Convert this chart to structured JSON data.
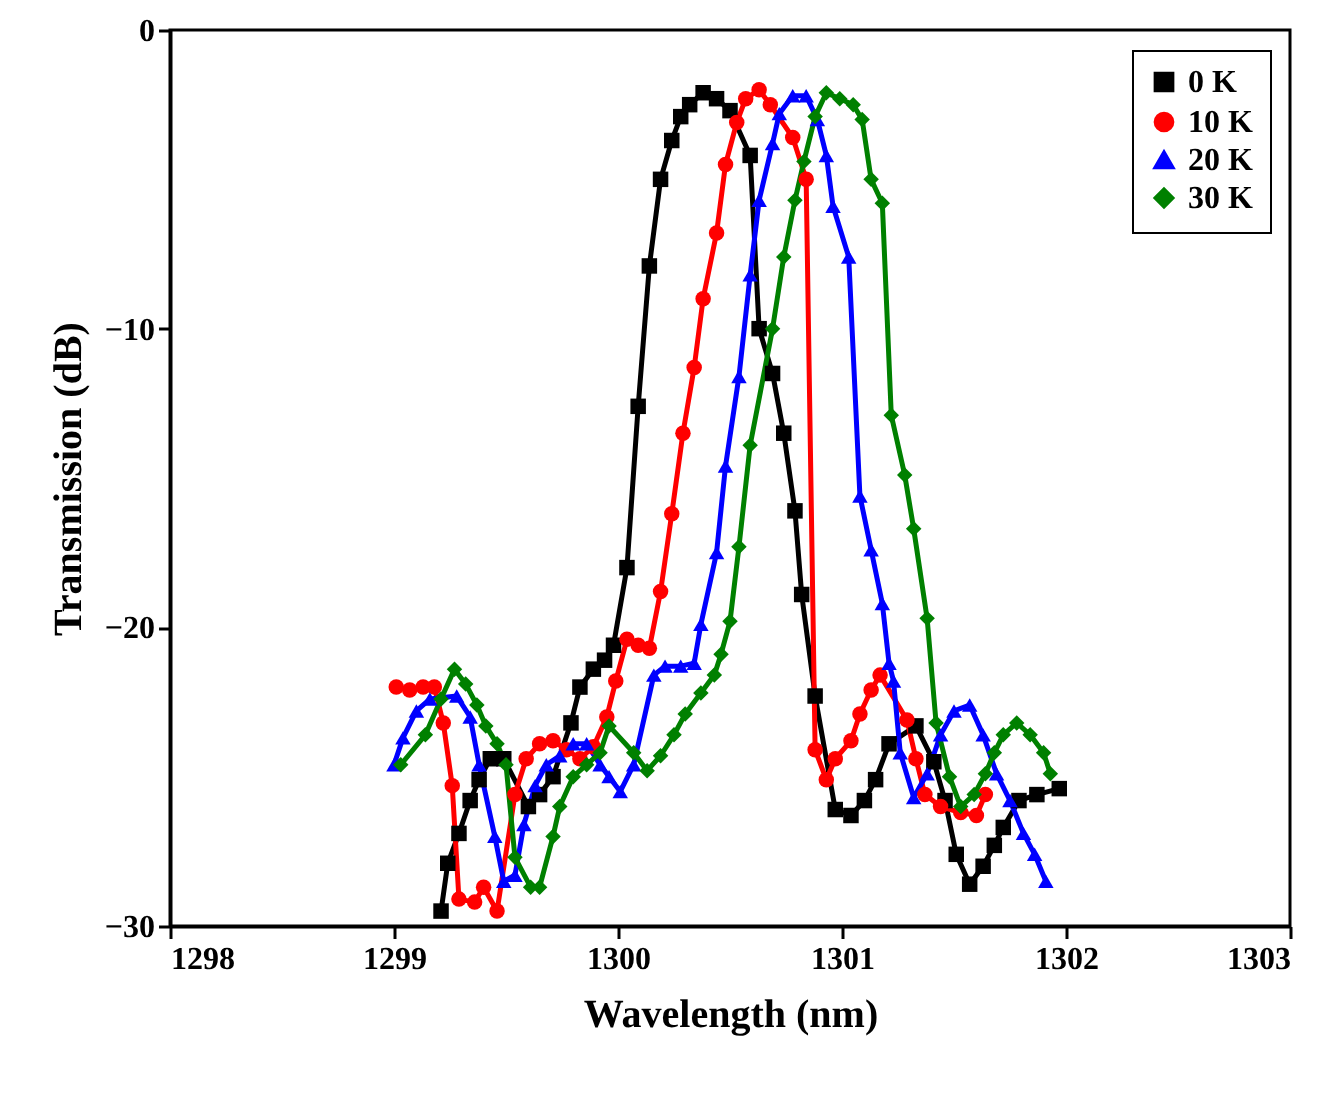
{
  "chart_data": {
    "type": "line",
    "xlabel": "Wavelength (nm)",
    "ylabel": "Transmission (dB)",
    "xlim": [
      1298,
      1303
    ],
    "xticks": [
      1298,
      1299,
      1300,
      1301,
      1302,
      1303
    ],
    "ylim": [
      -30,
      0
    ],
    "yticks": [
      -30,
      -20,
      -10,
      0
    ],
    "grid": false,
    "legend": "top right",
    "line_style": "solid",
    "series": [
      {
        "name": "0  K",
        "color": "#000000",
        "marker": "square",
        "x": [
          1299.21,
          1299.24,
          1299.29,
          1299.34,
          1299.38,
          1299.43,
          1299.49,
          1299.6,
          1299.65,
          1299.71,
          1299.79,
          1299.83,
          1299.89,
          1299.94,
          1299.98,
          1300.04,
          1300.09,
          1300.14,
          1300.19,
          1300.24,
          1300.28,
          1300.32,
          1300.38,
          1300.44,
          1300.5,
          1300.59,
          1300.63,
          1300.69,
          1300.74,
          1300.79,
          1300.82,
          1300.88,
          1300.97,
          1301.04,
          1301.1,
          1301.15,
          1301.21,
          1301.33,
          1301.41,
          1301.46,
          1301.51,
          1301.57,
          1301.63,
          1301.68,
          1301.72,
          1301.79,
          1301.87,
          1301.97
        ],
        "values": [
          -29.5,
          -27.9,
          -26.9,
          -25.8,
          -25.1,
          -24.4,
          -24.4,
          -26.0,
          -25.6,
          -25.0,
          -23.2,
          -22.0,
          -21.4,
          -21.1,
          -20.6,
          -18.0,
          -12.6,
          -7.9,
          -5.0,
          -3.7,
          -2.9,
          -2.5,
          -2.1,
          -2.3,
          -2.7,
          -4.2,
          -10.0,
          -11.5,
          -13.5,
          -16.1,
          -18.9,
          -22.3,
          -26.1,
          -26.3,
          -25.8,
          -25.1,
          -23.9,
          -23.3,
          -24.5,
          -25.8,
          -27.6,
          -28.6,
          -28.0,
          -27.3,
          -26.7,
          -25.8,
          -25.6,
          -25.4
        ]
      },
      {
        "name": "10 K",
        "color": "#ff0000",
        "marker": "circle",
        "x": [
          1299.01,
          1299.07,
          1299.13,
          1299.18,
          1299.22,
          1299.26,
          1299.29,
          1299.36,
          1299.4,
          1299.46,
          1299.54,
          1299.59,
          1299.65,
          1299.71,
          1299.77,
          1299.83,
          1299.89,
          1299.95,
          1299.99,
          1300.04,
          1300.09,
          1300.14,
          1300.19,
          1300.24,
          1300.29,
          1300.34,
          1300.38,
          1300.44,
          1300.48,
          1300.53,
          1300.57,
          1300.63,
          1300.68,
          1300.78,
          1300.84,
          1300.88,
          1300.93,
          1300.97,
          1301.04,
          1301.08,
          1301.13,
          1301.17,
          1301.29,
          1301.33,
          1301.37,
          1301.44,
          1301.53,
          1301.6,
          1301.64
        ],
        "values": [
          -22.0,
          -22.1,
          -22.0,
          -22.0,
          -23.2,
          -25.3,
          -29.1,
          -29.2,
          -28.7,
          -29.5,
          -25.6,
          -24.4,
          -23.9,
          -23.8,
          -24.1,
          -24.4,
          -24.0,
          -23.0,
          -21.8,
          -20.4,
          -20.6,
          -20.7,
          -18.8,
          -16.2,
          -13.5,
          -11.3,
          -9.0,
          -6.8,
          -4.5,
          -3.1,
          -2.3,
          -2.0,
          -2.5,
          -3.6,
          -5.0,
          -24.1,
          -25.1,
          -24.4,
          -23.8,
          -22.9,
          -22.1,
          -21.6,
          -23.1,
          -24.4,
          -25.6,
          -26.0,
          -26.2,
          -26.3,
          -25.6
        ]
      },
      {
        "name": "20 K",
        "color": "#0000ff",
        "marker": "triangle",
        "x": [
          1299.0,
          1299.04,
          1299.1,
          1299.16,
          1299.28,
          1299.34,
          1299.38,
          1299.45,
          1299.49,
          1299.54,
          1299.58,
          1299.63,
          1299.68,
          1299.74,
          1299.8,
          1299.86,
          1299.92,
          1299.96,
          1300.01,
          1300.07,
          1300.16,
          1300.21,
          1300.28,
          1300.34,
          1300.37,
          1300.44,
          1300.48,
          1300.54,
          1300.59,
          1300.63,
          1300.69,
          1300.72,
          1300.78,
          1300.84,
          1300.89,
          1300.93,
          1300.96,
          1301.03,
          1301.08,
          1301.13,
          1301.18,
          1301.21,
          1301.23,
          1301.26,
          1301.32,
          1301.38,
          1301.44,
          1301.5,
          1301.57,
          1301.63,
          1301.69,
          1301.75,
          1301.81,
          1301.86,
          1301.91
        ],
        "values": [
          -24.6,
          -23.7,
          -22.8,
          -22.4,
          -22.3,
          -23.0,
          -24.6,
          -27.0,
          -28.5,
          -28.3,
          -26.6,
          -25.3,
          -24.6,
          -24.3,
          -23.9,
          -23.9,
          -24.6,
          -25.0,
          -25.5,
          -24.6,
          -21.6,
          -21.3,
          -21.3,
          -21.2,
          -19.9,
          -17.5,
          -14.6,
          -11.6,
          -8.2,
          -5.7,
          -3.8,
          -2.8,
          -2.2,
          -2.2,
          -3.0,
          -4.2,
          -5.9,
          -7.6,
          -15.6,
          -17.4,
          -19.2,
          -21.2,
          -21.8,
          -24.2,
          -25.7,
          -24.9,
          -23.6,
          -22.8,
          -22.6,
          -23.6,
          -24.9,
          -25.8,
          -26.9,
          -27.6,
          -28.5
        ]
      },
      {
        "name": "30 K",
        "color": "#008000",
        "marker": "diamond",
        "x": [
          1299.03,
          1299.14,
          1299.21,
          1299.27,
          1299.32,
          1299.37,
          1299.41,
          1299.46,
          1299.5,
          1299.54,
          1299.61,
          1299.65,
          1299.71,
          1299.74,
          1299.8,
          1299.86,
          1299.92,
          1299.96,
          1300.07,
          1300.13,
          1300.19,
          1300.25,
          1300.3,
          1300.37,
          1300.43,
          1300.46,
          1300.5,
          1300.54,
          1300.59,
          1300.69,
          1300.74,
          1300.79,
          1300.83,
          1300.88,
          1300.93,
          1300.99,
          1301.05,
          1301.09,
          1301.13,
          1301.18,
          1301.22,
          1301.28,
          1301.32,
          1301.38,
          1301.42,
          1301.48,
          1301.53,
          1301.59,
          1301.64,
          1301.68,
          1301.72,
          1301.78,
          1301.84,
          1301.9,
          1301.93
        ],
        "values": [
          -24.6,
          -23.6,
          -22.4,
          -21.4,
          -21.9,
          -22.6,
          -23.3,
          -23.9,
          -24.6,
          -27.7,
          -28.7,
          -28.7,
          -27.0,
          -26.0,
          -25.0,
          -24.6,
          -24.2,
          -23.3,
          -24.2,
          -24.8,
          -24.3,
          -23.6,
          -22.9,
          -22.2,
          -21.6,
          -20.9,
          -19.8,
          -17.3,
          -13.9,
          -10.0,
          -7.6,
          -5.7,
          -4.4,
          -2.9,
          -2.1,
          -2.3,
          -2.5,
          -3.0,
          -5.0,
          -5.8,
          -12.9,
          -14.9,
          -16.7,
          -19.7,
          -23.2,
          -25.0,
          -26.0,
          -25.6,
          -24.9,
          -24.2,
          -23.6,
          -23.2,
          -23.6,
          -24.2,
          -24.9
        ]
      }
    ]
  }
}
